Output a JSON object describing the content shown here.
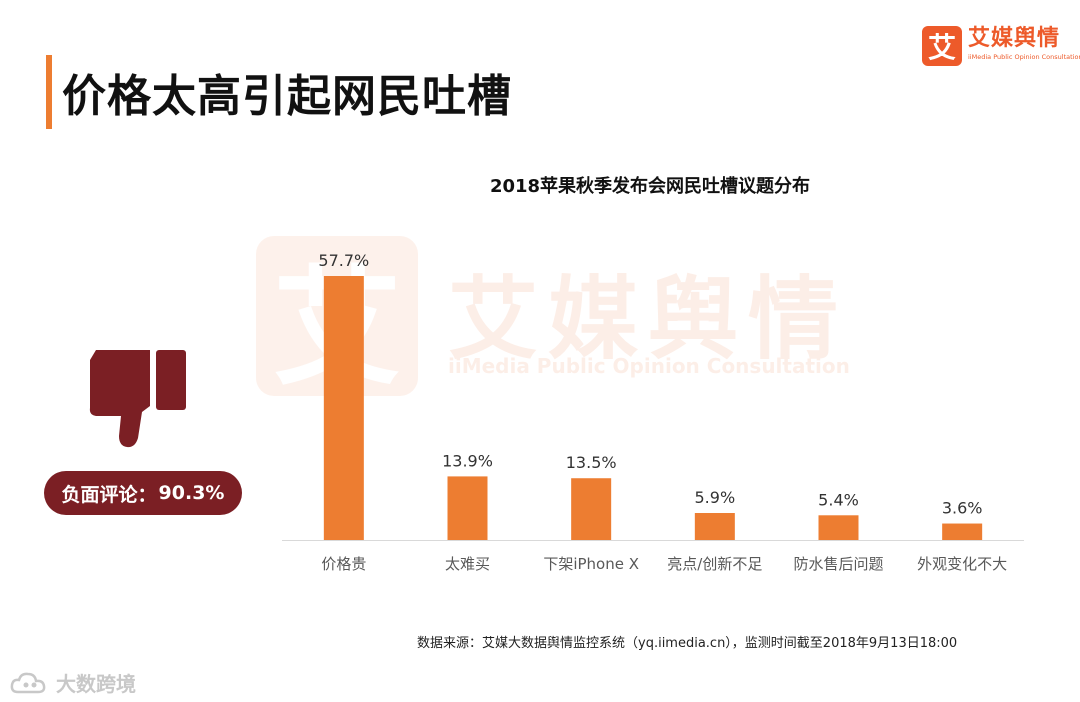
{
  "page": {
    "title": "价格太高引起网民吐槽"
  },
  "logo": {
    "mark": "艾",
    "name": "艾媒舆情",
    "tagline": "iiMedia Public Opinion Consultation"
  },
  "watermark": {
    "mark": "艾",
    "name": "艾媒舆情",
    "tagline": "iiMedia Public Opinion Consultation"
  },
  "negative": {
    "label": "负面评论：",
    "value": "90.3%",
    "icon": "thumbs-down-icon",
    "color": "#7B1F24"
  },
  "source": "数据来源：艾媒大数据舆情监控系统（yq.iimedia.cn），监测时间截至2018年9月13日18:00",
  "footer": {
    "brand": "大数跨境",
    "icon": "cloud-logo-icon"
  },
  "colors": {
    "accent": "#ED7D31",
    "negative": "#7B1F24"
  },
  "chart_data": {
    "type": "bar",
    "title": "2018苹果秋季发布会网民吐槽议题分布",
    "categories": [
      "价格贵",
      "太难买",
      "下架iPhone X",
      "亮点/创新不足",
      "防水售后问题",
      "外观变化不大"
    ],
    "values": [
      57.7,
      13.9,
      13.5,
      5.9,
      5.4,
      3.6
    ],
    "value_labels": [
      "57.7%",
      "13.9%",
      "13.5%",
      "5.9%",
      "5.4%",
      "3.6%"
    ],
    "unit": "%",
    "ylim": [
      0,
      57.7
    ],
    "grid": false,
    "bar_color": "#ED7D31"
  }
}
